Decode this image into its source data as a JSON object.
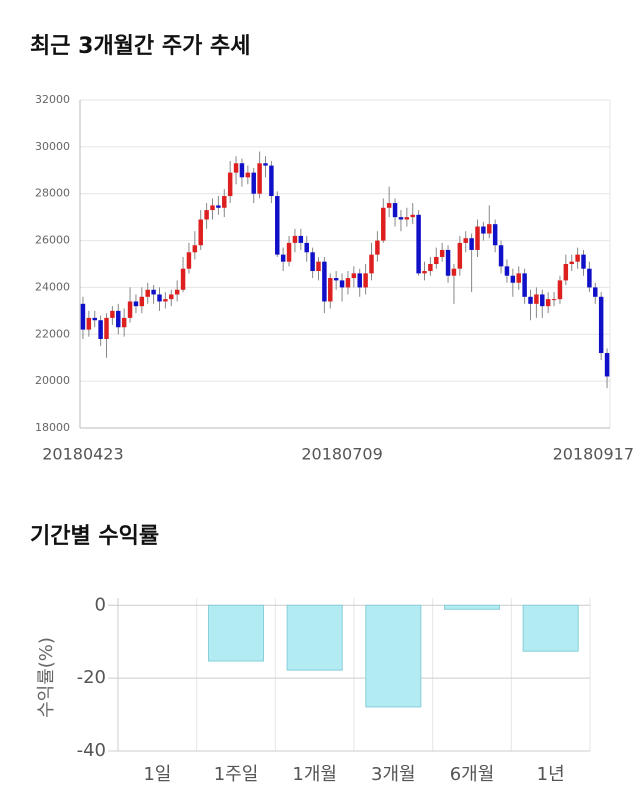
{
  "chart_data": [
    {
      "type": "candlestick",
      "title": "최근 3개월간 주가 추세",
      "categories": [
        "20180423",
        null,
        null,
        null,
        null,
        null,
        null,
        null,
        null,
        null,
        null,
        null,
        null,
        null,
        null,
        null,
        null,
        null,
        null,
        null,
        null,
        null,
        null,
        null,
        null,
        null,
        null,
        null,
        null,
        null,
        null,
        null,
        null,
        null,
        null,
        null,
        null,
        null,
        null,
        null,
        null,
        null,
        null,
        null,
        "20180709",
        null,
        null,
        null,
        null,
        null,
        null,
        null,
        null,
        null,
        null,
        null,
        null,
        null,
        null,
        null,
        null,
        null,
        null,
        null,
        null,
        null,
        null,
        null,
        null,
        null,
        null,
        null,
        null,
        null,
        null,
        null,
        null,
        null,
        null,
        null,
        null,
        null,
        null,
        null,
        null,
        null,
        null,
        null,
        null,
        "20180917"
      ],
      "open": [
        23300,
        22200,
        22700,
        22600,
        21800,
        22700,
        23000,
        22300,
        22700,
        23400,
        23200,
        23600,
        23900,
        23700,
        23400,
        23500,
        23700,
        23900,
        24800,
        25500,
        25800,
        26900,
        27300,
        27500,
        27400,
        27900,
        28900,
        29300,
        28700,
        28900,
        28000,
        29300,
        29200,
        27900,
        25400,
        25100,
        25900,
        26200,
        25900,
        25500,
        24700,
        25100,
        23400,
        24400,
        24300,
        24000,
        24400,
        24600,
        24000,
        24600,
        25400,
        26000,
        27400,
        27600,
        27000,
        26900,
        27000,
        27100,
        24600,
        24700,
        25000,
        25300,
        25600,
        24500,
        24800,
        25900,
        26100,
        25600,
        26600,
        26300,
        26700,
        25800,
        24900,
        24500,
        24200,
        24600,
        23600,
        23300,
        23700,
        23200,
        23500,
        23500,
        24300,
        25000,
        25100,
        25400,
        24800,
        24000,
        23600,
        21200
      ],
      "high": [
        23600,
        23000,
        23000,
        22800,
        22900,
        23200,
        23300,
        23100,
        24000,
        23700,
        24000,
        24200,
        24100,
        24000,
        23800,
        23900,
        24300,
        25300,
        25900,
        26400,
        27300,
        27600,
        27800,
        27900,
        28200,
        29400,
        29600,
        29500,
        29200,
        29100,
        29800,
        29600,
        29400,
        28100,
        25700,
        26200,
        26500,
        26500,
        26200,
        25700,
        25300,
        25300,
        24600,
        24700,
        24600,
        24700,
        24900,
        24800,
        25000,
        25900,
        26400,
        27800,
        28300,
        27800,
        27300,
        27400,
        27600,
        27300,
        25100,
        25300,
        25700,
        25900,
        25800,
        25000,
        26200,
        26400,
        26300,
        26900,
        26800,
        27500,
        26900,
        26000,
        25200,
        24800,
        24900,
        24800,
        23900,
        24000,
        23900,
        23800,
        23800,
        24500,
        25400,
        25400,
        25700,
        25600,
        25100,
        24200,
        23800,
        21400
      ],
      "low": [
        21800,
        21900,
        22300,
        21500,
        21000,
        22400,
        22000,
        21900,
        22500,
        22900,
        22900,
        23300,
        23300,
        23000,
        23100,
        23200,
        23400,
        23800,
        24600,
        25200,
        25600,
        26500,
        26900,
        27100,
        27000,
        27600,
        28400,
        28300,
        28400,
        27600,
        27800,
        28700,
        27600,
        25300,
        24700,
        24900,
        25500,
        25600,
        25100,
        24400,
        24300,
        22900,
        23100,
        23900,
        23400,
        23700,
        24000,
        23600,
        23700,
        24300,
        25100,
        25900,
        27000,
        26600,
        26400,
        26600,
        26700,
        24500,
        24300,
        24500,
        24800,
        25100,
        24200,
        23300,
        24500,
        25500,
        23800,
        25300,
        26000,
        26100,
        25500,
        24600,
        24200,
        23600,
        23900,
        23300,
        22600,
        22700,
        22700,
        22900,
        23200,
        23300,
        24100,
        24700,
        24800,
        24500,
        23800,
        23300,
        20900,
        19700
      ],
      "close": [
        22200,
        22700,
        22600,
        21800,
        22700,
        23000,
        22300,
        22700,
        23400,
        23200,
        23600,
        23900,
        23700,
        23400,
        23500,
        23700,
        23900,
        24800,
        25500,
        25800,
        26900,
        27300,
        27500,
        27400,
        27900,
        28900,
        29300,
        28700,
        28900,
        28000,
        29300,
        29200,
        27900,
        25400,
        25100,
        25900,
        26200,
        25900,
        25500,
        24700,
        25100,
        23400,
        24400,
        24300,
        24000,
        24400,
        24600,
        24000,
        24600,
        25400,
        26000,
        27400,
        27600,
        27000,
        26900,
        27000,
        27100,
        24600,
        24700,
        25000,
        25300,
        25600,
        24500,
        24800,
        25900,
        26100,
        25600,
        26600,
        26300,
        26700,
        25800,
        24900,
        24500,
        24200,
        24600,
        23600,
        23300,
        23700,
        23200,
        23500,
        23500,
        24300,
        25000,
        25100,
        25400,
        24800,
        24000,
        23600,
        21200,
        20200
      ],
      "up_color": "#dd1f1f",
      "down_color": "#1010c8",
      "ylim": [
        18000,
        32000
      ],
      "yticks": [
        18000,
        20000,
        22000,
        24000,
        26000,
        28000,
        30000,
        32000
      ],
      "grid": true
    },
    {
      "type": "bar",
      "title": "기간별 수익률",
      "ylabel": "수익률(%)",
      "categories": [
        "1일",
        "1주일",
        "1개월",
        "3개월",
        "6개월",
        "1년"
      ],
      "values": [
        0,
        -15.3,
        -17.8,
        -27.9,
        -1.1,
        -12.6
      ],
      "color": "#b3ebf2",
      "ylim": [
        -40,
        2
      ],
      "yticks": [
        0,
        -20,
        -40
      ],
      "grid": true
    }
  ]
}
